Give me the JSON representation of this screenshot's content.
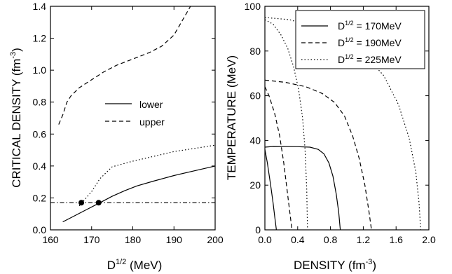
{
  "chart_data": [
    {
      "type": "line",
      "xlabel": "D",
      "xlabel_sup": "1/2",
      "xlabel_suffix": " (MeV)",
      "ylabel": "CRITICAL DENSITY (fm",
      "ylabel_sup": "-3",
      "ylabel_suffix": ")",
      "xlim": [
        160,
        200
      ],
      "ylim": [
        0.0,
        1.4
      ],
      "xticks": [
        160,
        170,
        180,
        190,
        200
      ],
      "xtick_labels": [
        "160",
        "170",
        "180",
        "190",
        "200"
      ],
      "yticks": [
        0.0,
        0.2,
        0.4,
        0.6,
        0.8,
        1.0,
        1.2,
        1.4
      ],
      "ytick_labels": [
        "0.0",
        "0.2",
        "0.4",
        "0.6",
        "0.8",
        "1.0",
        "1.2",
        "1.4"
      ],
      "legend": {
        "position": "center",
        "entries": [
          {
            "label": "lower",
            "style": "solid"
          },
          {
            "label": "upper",
            "style": "dashed"
          }
        ]
      },
      "series": [
        {
          "name": "lower",
          "style": "solid",
          "x": [
            163,
            166,
            169,
            172,
            175,
            178,
            181,
            185,
            190,
            195,
            200
          ],
          "y": [
            0.05,
            0.09,
            0.13,
            0.17,
            0.21,
            0.245,
            0.275,
            0.305,
            0.34,
            0.37,
            0.4
          ]
        },
        {
          "name": "upper",
          "style": "dashed",
          "x": [
            162,
            163,
            164,
            165,
            167,
            170,
            173,
            176,
            180,
            184,
            187,
            190,
            194
          ],
          "y": [
            0.66,
            0.72,
            0.8,
            0.84,
            0.89,
            0.94,
            0.99,
            1.03,
            1.07,
            1.11,
            1.15,
            1.22,
            1.4
          ]
        },
        {
          "style": "dotted",
          "x": [
            167,
            170,
            172,
            175,
            180,
            185,
            190,
            195,
            200
          ],
          "y": [
            0.15,
            0.24,
            0.32,
            0.395,
            0.43,
            0.46,
            0.49,
            0.51,
            0.53
          ]
        },
        {
          "style": "dashdot",
          "x": [
            160,
            200
          ],
          "y": [
            0.17,
            0.17
          ]
        }
      ],
      "markers": {
        "x": [
          167.5,
          171.7
        ],
        "y": [
          0.17,
          0.17
        ]
      }
    },
    {
      "type": "line",
      "xlabel": "DENSITY (fm",
      "xlabel_sup": "-3",
      "xlabel_suffix": ")",
      "ylabel": "TEMPERATURE (MeV)",
      "xlim": [
        0.0,
        2.0
      ],
      "ylim": [
        0,
        100
      ],
      "xticks": [
        0.0,
        0.4,
        0.8,
        1.2,
        1.6,
        2.0
      ],
      "xtick_labels": [
        "0.0",
        "0.4",
        "0.8",
        "1.2",
        "1.6",
        "2.0"
      ],
      "yticks": [
        0,
        20,
        40,
        60,
        80,
        100
      ],
      "ytick_labels": [
        "0",
        "20",
        "40",
        "60",
        "80",
        "100"
      ],
      "legend": {
        "position": "top-right",
        "entries": [
          {
            "prefix": "D",
            "sup": "1/2",
            "suffix": " = 170MeV",
            "style": "solid"
          },
          {
            "prefix": "D",
            "sup": "1/2",
            "suffix": " = 190MeV",
            "style": "dashed"
          },
          {
            "prefix": "D",
            "sup": "1/2",
            "suffix": " = 225MeV",
            "style": "dotted"
          }
        ]
      },
      "series": [
        {
          "name": "D1/2 = 170MeV (inner)",
          "style": "solid",
          "x": [
            0.0,
            0.03,
            0.07,
            0.1,
            0.12,
            0.14
          ],
          "y": [
            36,
            30,
            20,
            12,
            6,
            0
          ]
        },
        {
          "name": "D1/2 = 170MeV (outer)",
          "style": "solid",
          "x": [
            0.0,
            0.1,
            0.4,
            0.55,
            0.65,
            0.72,
            0.78,
            0.83,
            0.87,
            0.9,
            0.92
          ],
          "y": [
            37,
            37.3,
            37.2,
            37,
            36,
            34,
            30,
            24,
            16,
            8,
            0
          ]
        },
        {
          "name": "D1/2 = 190MeV (inner)",
          "style": "dashed",
          "x": [
            0.0,
            0.05,
            0.12,
            0.18,
            0.23,
            0.27,
            0.31,
            0.33
          ],
          "y": [
            64,
            60,
            52,
            42,
            30,
            18,
            6,
            0
          ]
        },
        {
          "name": "D1/2 = 190MeV (outer)",
          "style": "dashed",
          "x": [
            0.0,
            0.25,
            0.5,
            0.7,
            0.85,
            0.97,
            1.07,
            1.15,
            1.22,
            1.27,
            1.3
          ],
          "y": [
            67,
            66,
            64,
            61,
            57,
            51,
            42,
            32,
            20,
            8,
            0
          ]
        },
        {
          "name": "D1/2 = 225MeV (inner)",
          "style": "dotted",
          "x": [
            0.0,
            0.1,
            0.2,
            0.28,
            0.35,
            0.41,
            0.46,
            0.49,
            0.51,
            0.52
          ],
          "y": [
            94,
            92,
            87,
            81,
            73,
            63,
            50,
            36,
            18,
            0
          ]
        },
        {
          "name": "D1/2 = 225MeV (outer)",
          "style": "dotted",
          "x": [
            0.0,
            0.3,
            0.6,
            0.9,
            1.2,
            1.45,
            1.63,
            1.76,
            1.84,
            1.88,
            1.9
          ],
          "y": [
            95,
            94,
            91,
            86,
            79,
            69,
            56,
            41,
            26,
            12,
            0
          ]
        }
      ]
    }
  ]
}
